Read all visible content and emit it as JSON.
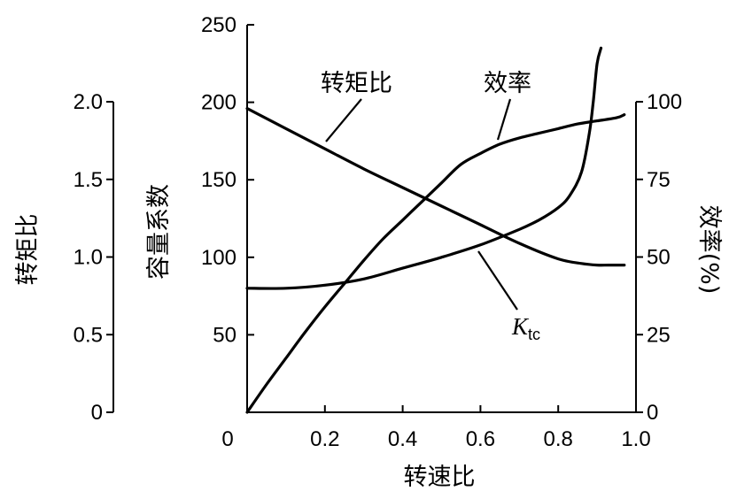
{
  "chart_data": {
    "type": "line",
    "xlabel": "转速比",
    "x_ticks": [
      "0",
      "0.2",
      "0.4",
      "0.6",
      "0.8",
      "1.0"
    ],
    "xlim": [
      0,
      1.0
    ],
    "axes": {
      "torque_ratio": {
        "label": "转矩比",
        "ylim": [
          0,
          2.0
        ],
        "ticks": [
          "0",
          "0.5",
          "1.0",
          "1.5",
          "2.0"
        ]
      },
      "capacity": {
        "label": "容量系数",
        "ylim": [
          0,
          250
        ],
        "ticks": [
          "50",
          "100",
          "150",
          "200",
          "250"
        ]
      },
      "efficiency": {
        "label": "效率(%)",
        "ylim": [
          0,
          100
        ],
        "ticks": [
          "0",
          "25",
          "50",
          "75",
          "100"
        ]
      }
    },
    "series": [
      {
        "name": "转矩比",
        "axis": "capacity",
        "x": [
          0,
          0.1,
          0.2,
          0.3,
          0.4,
          0.5,
          0.6,
          0.7,
          0.8,
          0.86,
          0.9,
          0.93,
          0.97
        ],
        "y": [
          196,
          183,
          170,
          157,
          145,
          133,
          121,
          109,
          99,
          96,
          95,
          95,
          95
        ]
      },
      {
        "name": "效率",
        "axis": "capacity",
        "x": [
          0,
          0.05,
          0.1,
          0.15,
          0.2,
          0.25,
          0.3,
          0.35,
          0.4,
          0.45,
          0.5,
          0.55,
          0.6,
          0.65,
          0.7,
          0.75,
          0.8,
          0.85,
          0.9,
          0.95,
          0.97
        ],
        "y": [
          0,
          18,
          35,
          52,
          68,
          83,
          98,
          112,
          124,
          136,
          148,
          160,
          167,
          173,
          177,
          180,
          183,
          186,
          188,
          190,
          192
        ]
      },
      {
        "name": "Ktc",
        "axis": "capacity",
        "x": [
          0,
          0.1,
          0.2,
          0.3,
          0.4,
          0.5,
          0.6,
          0.7,
          0.75,
          0.8,
          0.83,
          0.86,
          0.88,
          0.89,
          0.9,
          0.91
        ],
        "y": [
          80,
          80,
          82,
          86,
          93,
          100,
          108,
          118,
          124,
          132,
          140,
          155,
          180,
          200,
          225,
          235
        ]
      }
    ],
    "annotations": {
      "torque_ratio": "转矩比",
      "efficiency": "效率",
      "ktc_main": "K",
      "ktc_sub": "tc"
    },
    "grid": false
  }
}
